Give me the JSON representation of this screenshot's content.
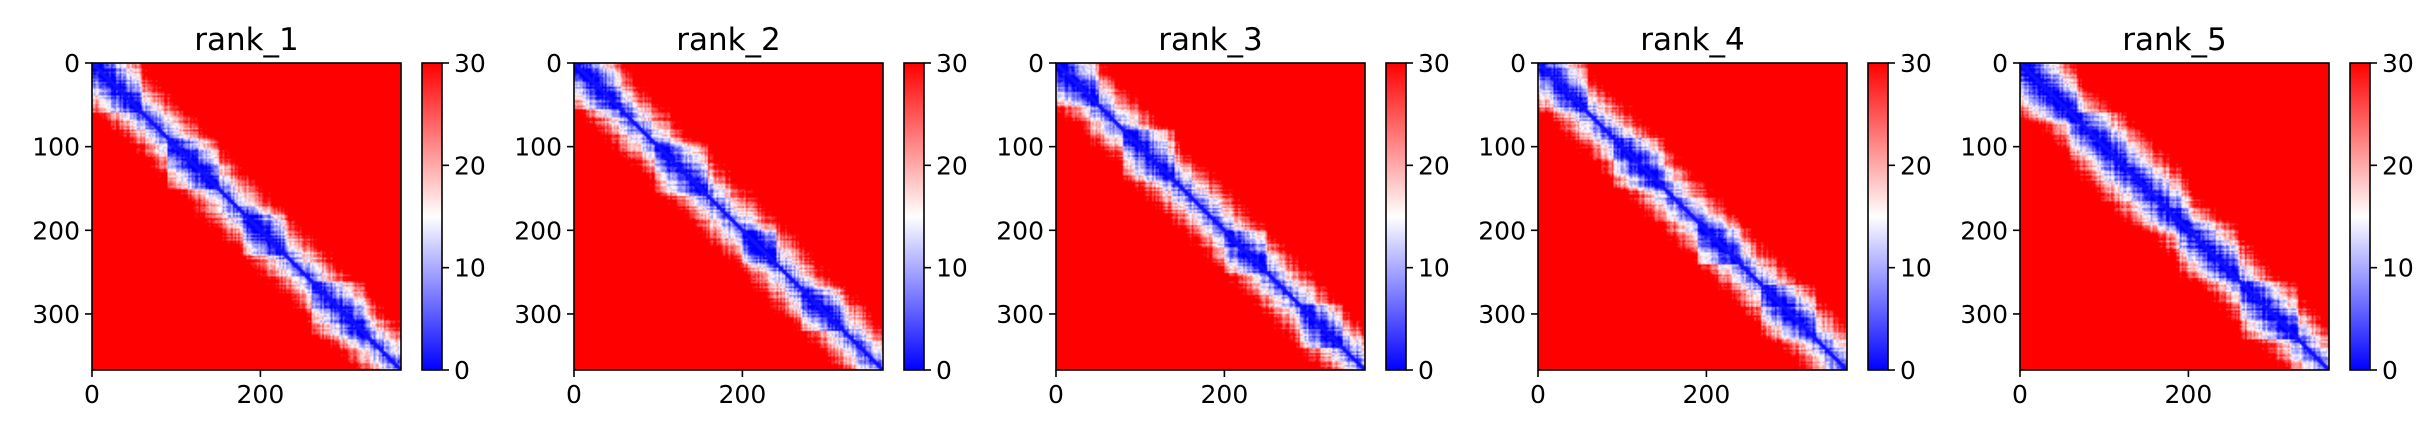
{
  "chart_data": [
    {
      "type": "heatmap",
      "title": "rank_1",
      "xlabel": "",
      "ylabel": "",
      "matrix_size": 367,
      "xlim": [
        0,
        367
      ],
      "ylim": [
        367,
        0
      ],
      "x_ticks": [
        0,
        200
      ],
      "x_tick_labels": [
        "0",
        "200"
      ],
      "y_ticks": [
        0,
        100,
        200,
        300
      ],
      "y_tick_labels": [
        "0",
        "100",
        "200",
        "300"
      ],
      "colorbar": {
        "min": 0,
        "max": 30,
        "ticks": [
          0,
          10,
          20,
          30
        ],
        "tick_labels": [
          "0",
          "10",
          "20",
          "30"
        ],
        "colormap": "bwr",
        "low_color": "#0000ff",
        "mid_color": "#ffffff",
        "high_color": "#ff0000"
      },
      "diagonal_blocks": [
        [
          0,
          60
        ],
        [
          90,
          150
        ],
        [
          180,
          230
        ],
        [
          260,
          330
        ]
      ],
      "seed": 11
    },
    {
      "type": "heatmap",
      "title": "rank_2",
      "xlabel": "",
      "ylabel": "",
      "matrix_size": 367,
      "xlim": [
        0,
        367
      ],
      "ylim": [
        367,
        0
      ],
      "x_ticks": [
        0,
        200
      ],
      "x_tick_labels": [
        "0",
        "200"
      ],
      "y_ticks": [
        0,
        100,
        200,
        300
      ],
      "y_tick_labels": [
        "0",
        "100",
        "200",
        "300"
      ],
      "colorbar": {
        "min": 0,
        "max": 30,
        "ticks": [
          0,
          10,
          20,
          30
        ],
        "tick_labels": [
          "0",
          "10",
          "20",
          "30"
        ],
        "colormap": "bwr",
        "low_color": "#0000ff",
        "mid_color": "#ffffff",
        "high_color": "#ff0000"
      },
      "diagonal_blocks": [
        [
          0,
          55
        ],
        [
          95,
          160
        ],
        [
          200,
          240
        ],
        [
          270,
          320
        ]
      ],
      "seed": 23
    },
    {
      "type": "heatmap",
      "title": "rank_3",
      "xlabel": "",
      "ylabel": "",
      "matrix_size": 367,
      "xlim": [
        0,
        367
      ],
      "ylim": [
        367,
        0
      ],
      "x_ticks": [
        0,
        200
      ],
      "x_tick_labels": [
        "0",
        "200"
      ],
      "y_ticks": [
        0,
        100,
        200,
        300
      ],
      "y_tick_labels": [
        "0",
        "100",
        "200",
        "300"
      ],
      "colorbar": {
        "min": 0,
        "max": 30,
        "ticks": [
          0,
          10,
          20,
          30
        ],
        "tick_labels": [
          "0",
          "10",
          "20",
          "30"
        ],
        "colormap": "bwr",
        "low_color": "#0000ff",
        "mid_color": "#ffffff",
        "high_color": "#ff0000"
      },
      "diagonal_blocks": [
        [
          0,
          50
        ],
        [
          80,
          140
        ],
        [
          200,
          250
        ],
        [
          290,
          340
        ]
      ],
      "seed": 37
    },
    {
      "type": "heatmap",
      "title": "rank_4",
      "xlabel": "",
      "ylabel": "",
      "matrix_size": 367,
      "xlim": [
        0,
        367
      ],
      "ylim": [
        367,
        0
      ],
      "x_ticks": [
        0,
        200
      ],
      "x_tick_labels": [
        "0",
        "200"
      ],
      "y_ticks": [
        0,
        100,
        200,
        300
      ],
      "y_tick_labels": [
        "0",
        "100",
        "200",
        "300"
      ],
      "colorbar": {
        "min": 0,
        "max": 30,
        "ticks": [
          0,
          10,
          20,
          30
        ],
        "tick_labels": [
          "0",
          "10",
          "20",
          "30"
        ],
        "colormap": "bwr",
        "low_color": "#0000ff",
        "mid_color": "#ffffff",
        "high_color": "#ff0000"
      },
      "diagonal_blocks": [
        [
          0,
          60
        ],
        [
          90,
          150
        ],
        [
          190,
          240
        ],
        [
          265,
          330
        ]
      ],
      "seed": 41
    },
    {
      "type": "heatmap",
      "title": "rank_5",
      "xlabel": "",
      "ylabel": "",
      "matrix_size": 367,
      "xlim": [
        0,
        367
      ],
      "ylim": [
        367,
        0
      ],
      "x_ticks": [
        0,
        200
      ],
      "x_tick_labels": [
        "0",
        "200"
      ],
      "y_ticks": [
        0,
        100,
        200,
        300
      ],
      "y_tick_labels": [
        "0",
        "100",
        "200",
        "300"
      ],
      "colorbar": {
        "min": 0,
        "max": 30,
        "ticks": [
          0,
          10,
          20,
          30
        ],
        "tick_labels": [
          "0",
          "10",
          "20",
          "30"
        ],
        "colormap": "bwr",
        "low_color": "#0000ff",
        "mid_color": "#ffffff",
        "high_color": "#ff0000"
      },
      "diagonal_blocks": [
        [
          0,
          70
        ],
        [
          60,
          200
        ],
        [
          190,
          260
        ],
        [
          260,
          330
        ]
      ],
      "seed": 53
    }
  ]
}
